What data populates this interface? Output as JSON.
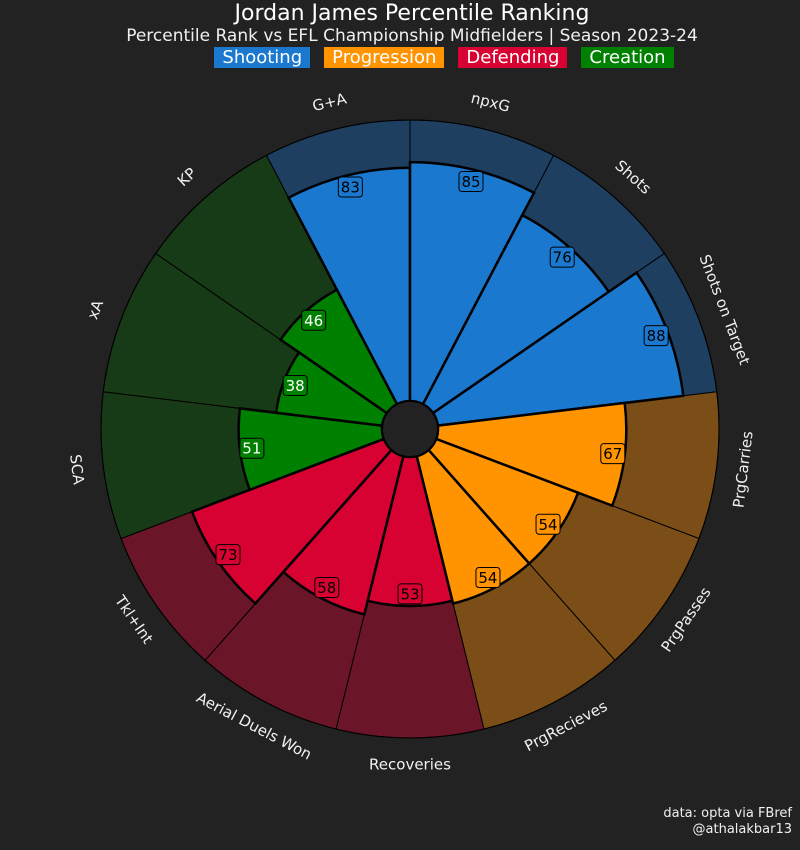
{
  "header": {
    "title": "Jordan James Percentile Ranking",
    "subtitle": "Percentile Rank vs EFL Championship Midfielders | Season 2023-24"
  },
  "legend": [
    {
      "label": "Shooting",
      "color": "#1a78cf"
    },
    {
      "label": "Progression",
      "color": "#ff9300"
    },
    {
      "label": "Defending",
      "color": "#d70232"
    },
    {
      "label": "Creation",
      "color": "#008000"
    }
  ],
  "colors": {
    "background": "#222222",
    "Shooting": {
      "slice": "#1a78cf",
      "background": "#1e3f60"
    },
    "Progression": {
      "slice": "#ff9300",
      "background": "#7a4e16"
    },
    "Defending": {
      "slice": "#d70232",
      "background": "#6b1528"
    },
    "Creation": {
      "slice": "#008000",
      "background": "#173a17"
    }
  },
  "chart_data": {
    "type": "pie",
    "variant": "pizza / radial bar",
    "title": "Jordan James Percentile Ranking",
    "range": [
      0,
      100
    ],
    "order": "clockwise from top",
    "metrics": [
      {
        "label": "G+A",
        "value": 83,
        "group": "Shooting"
      },
      {
        "label": "npxG",
        "value": 85,
        "group": "Shooting"
      },
      {
        "label": "Shots",
        "value": 76,
        "group": "Shooting"
      },
      {
        "label": "Shots on Target",
        "value": 88,
        "group": "Shooting"
      },
      {
        "label": "PrgCarries",
        "value": 67,
        "group": "Progression"
      },
      {
        "label": "PrgPasses",
        "value": 54,
        "group": "Progression"
      },
      {
        "label": "PrgRecieves",
        "value": 54,
        "group": "Progression"
      },
      {
        "label": "Recoveries",
        "value": 53,
        "group": "Defending"
      },
      {
        "label": "Aerial Duels Won",
        "value": 58,
        "group": "Defending"
      },
      {
        "label": "Tkl+Int",
        "value": 73,
        "group": "Defending"
      },
      {
        "label": "SCA",
        "value": 51,
        "group": "Creation"
      },
      {
        "label": "xA",
        "value": 38,
        "group": "Creation"
      },
      {
        "label": "KP",
        "value": 46,
        "group": "Creation"
      }
    ]
  },
  "footer": {
    "line1": "data: opta via FBref",
    "line2": "@athalakbar13"
  }
}
